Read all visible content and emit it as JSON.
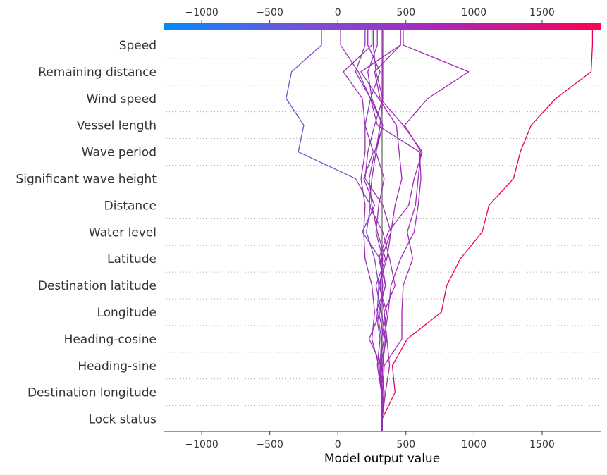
{
  "chart_data": {
    "type": "decision",
    "title": "",
    "xlabel": "Model output value",
    "ylabel": "",
    "xlim": [
      -1280,
      1930
    ],
    "xticks": [
      -1000,
      -500,
      0,
      500,
      1000,
      1500
    ],
    "xtick_labels": [
      "−1000",
      "−500",
      "0",
      "500",
      "1000",
      "1500"
    ],
    "base_value": 325,
    "grid": "dotted horizontal lines between features",
    "colorbar": {
      "position": "top",
      "stops": [
        "#008bfb",
        "#7a4fd6",
        "#b022b2",
        "#ff0051"
      ]
    },
    "features": [
      "Speed",
      "Remaining distance",
      "Wind speed",
      "Vessel length",
      "Wave period",
      "Significant wave height",
      "Distance",
      "Water level",
      "Latitude",
      "Destination latitude",
      "Longitude",
      "Heading-cosine",
      "Heading-sine",
      "Destination longitude",
      "Lock status"
    ],
    "series": [
      {
        "color": "#e8005d",
        "values": [
          1870,
          1860,
          1600,
          1420,
          1340,
          1290,
          1110,
          1060,
          900,
          800,
          760,
          510,
          400,
          420,
          325
        ]
      },
      {
        "color": "#7b4cd2",
        "values": [
          -120,
          -340,
          -380,
          -250,
          -290,
          130,
          240,
          210,
          270,
          300,
          290,
          320,
          310,
          330,
          325
        ]
      },
      {
        "color": "#a628b4",
        "values": [
          480,
          960,
          660,
          490,
          610,
          590,
          570,
          510,
          550,
          480,
          470,
          470,
          340,
          330,
          325
        ]
      },
      {
        "color": "#9d2db5",
        "values": [
          250,
          40,
          180,
          200,
          200,
          170,
          200,
          190,
          200,
          250,
          270,
          250,
          300,
          320,
          325
        ]
      },
      {
        "color": "#9a2fb6",
        "values": [
          20,
          150,
          240,
          290,
          600,
          610,
          590,
          560,
          460,
          390,
          370,
          340,
          300,
          330,
          325
        ]
      },
      {
        "color": "#a22ab5",
        "values": [
          460,
          270,
          310,
          480,
          620,
          560,
          520,
          370,
          300,
          350,
          280,
          310,
          290,
          320,
          325
        ]
      },
      {
        "color": "#9630b7",
        "values": [
          220,
          310,
          240,
          330,
          270,
          230,
          250,
          290,
          350,
          280,
          320,
          350,
          330,
          320,
          325
        ]
      },
      {
        "color": "#a529b4",
        "values": [
          330,
          330,
          330,
          310,
          280,
          250,
          230,
          330,
          380,
          420,
          340,
          360,
          380,
          350,
          325
        ]
      },
      {
        "color": "#8e38b8",
        "values": [
          200,
          130,
          240,
          200,
          260,
          190,
          270,
          180,
          310,
          330,
          310,
          230,
          320,
          340,
          325
        ]
      },
      {
        "color": "#9b2eb6",
        "values": [
          290,
          220,
          250,
          330,
          280,
          340,
          300,
          280,
          330,
          310,
          340,
          360,
          310,
          330,
          325
        ]
      },
      {
        "color": "#a02bb5",
        "values": [
          460,
          170,
          300,
          430,
          450,
          470,
          420,
          390,
          360,
          300,
          360,
          320,
          320,
          340,
          325
        ]
      },
      {
        "color": "#9531b7",
        "values": [
          260,
          280,
          330,
          270,
          220,
          200,
          330,
          390,
          320,
          350,
          300,
          340,
          330,
          320,
          325
        ]
      }
    ]
  }
}
